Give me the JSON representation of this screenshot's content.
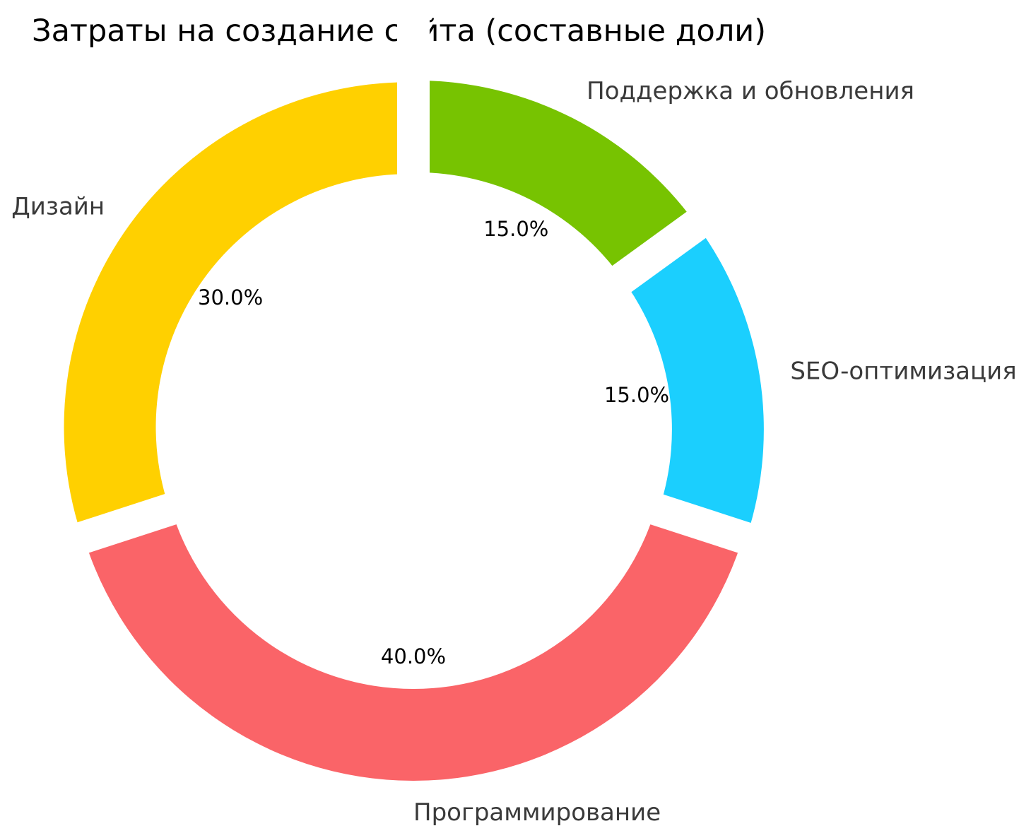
{
  "chart_data": {
    "type": "pie",
    "donut": true,
    "title": "Затраты на создание сайта (составные доли)",
    "legend_position": "none",
    "background": "#ffffff",
    "text_color": "#3a3a3a",
    "pct_text_color": "#000000",
    "gap_color": "#ffffff",
    "start_angle": "top",
    "direction": "clockwise",
    "segments": [
      {
        "label": "Поддержка и обновления",
        "value": 15.0,
        "pct_label": "15.0%",
        "color": "#77C301"
      },
      {
        "label": "SEO-оптимизация",
        "value": 15.0,
        "pct_label": "15.0%",
        "color": "#1BCFFE"
      },
      {
        "label": "Программирование",
        "value": 40.0,
        "pct_label": "40.0%",
        "color": "#FA6468"
      },
      {
        "label": "Дизайн",
        "value": 30.0,
        "pct_label": "30.0%",
        "color": "#FFD000"
      }
    ]
  }
}
